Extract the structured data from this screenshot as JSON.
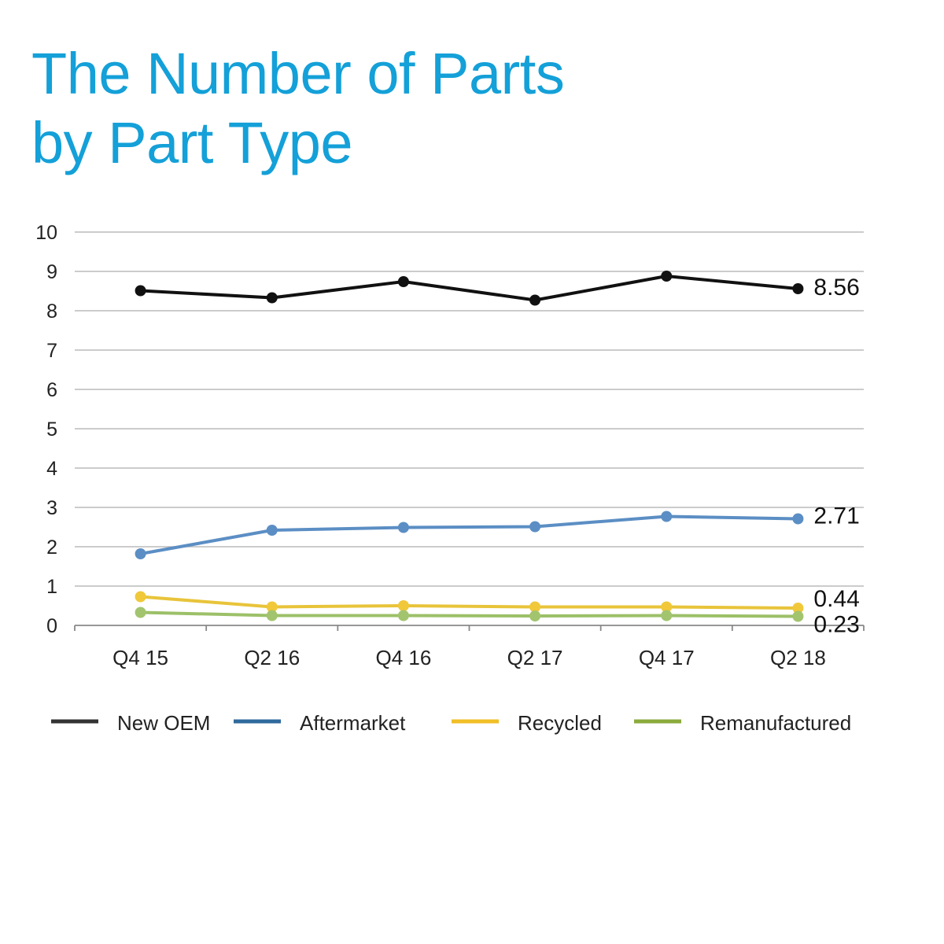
{
  "title_lines": [
    "The Number of Parts",
    "by Part Type"
  ],
  "colors": {
    "title": "#14a0d8",
    "grid": "#bbbbbb",
    "axis": "#888888",
    "text": "#222222"
  },
  "chart_data": {
    "type": "line",
    "title": "The Number of Parts by Part Type",
    "xlabel": "",
    "ylabel": "",
    "categories": [
      "Q4 15",
      "Q2 16",
      "Q4 16",
      "Q2 17",
      "Q4 17",
      "Q2 18"
    ],
    "ylim": [
      0,
      10
    ],
    "yticks": [
      0,
      1,
      2,
      3,
      4,
      5,
      6,
      7,
      8,
      9,
      10
    ],
    "grid": true,
    "legend_position": "bottom",
    "series": [
      {
        "name": "New OEM",
        "values": [
          8.51,
          8.33,
          8.74,
          8.27,
          8.88,
          8.56
        ],
        "end_label": "8.56",
        "line_color": "#111111",
        "marker_color": "#111111",
        "legend_color": "#333333"
      },
      {
        "name": "Aftermarket",
        "values": [
          1.82,
          2.42,
          2.49,
          2.51,
          2.77,
          2.71
        ],
        "end_label": "2.71",
        "line_color": "#5b8ec4",
        "marker_color": "#5b8ec4",
        "legend_color": "#2f6a9c"
      },
      {
        "name": "Recycled",
        "values": [
          0.73,
          0.47,
          0.5,
          0.47,
          0.47,
          0.44
        ],
        "end_label": "0.44",
        "line_color": "#e8c43a",
        "marker_color": "#f0c83a",
        "legend_color": "#f0be26"
      },
      {
        "name": "Remanufactured",
        "values": [
          0.33,
          0.25,
          0.25,
          0.24,
          0.25,
          0.23
        ],
        "end_label": "0.23",
        "line_color": "#9cc068",
        "marker_color": "#a3c46e",
        "legend_color": "#8aab3c"
      }
    ]
  }
}
